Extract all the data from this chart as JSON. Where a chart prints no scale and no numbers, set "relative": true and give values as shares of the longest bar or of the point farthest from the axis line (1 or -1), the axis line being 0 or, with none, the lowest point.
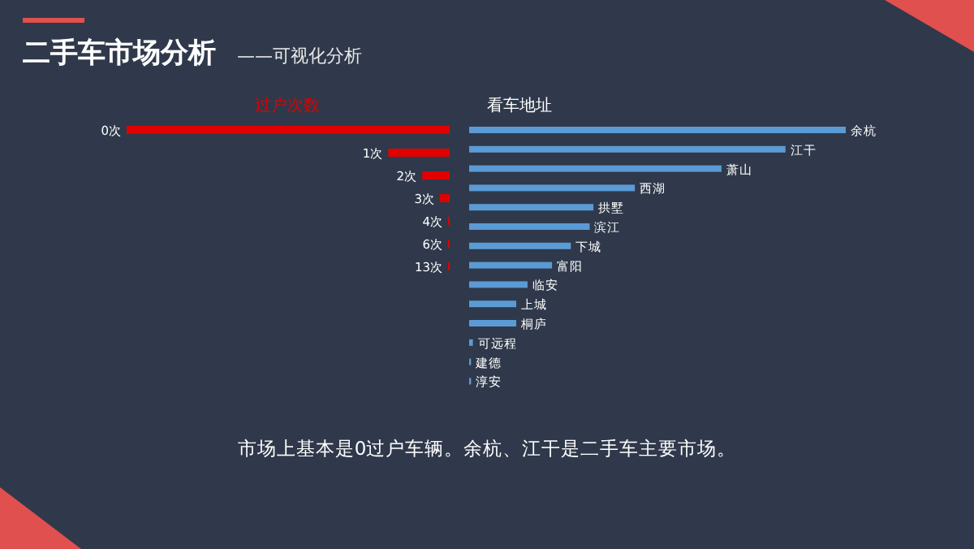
{
  "chart_data": [
    {
      "type": "other",
      "title": "二手车市场分析",
      "subtitle": "——可视化分析",
      "annotations": [
        "市场上基本是0过户车辆。余杭、江干是二手车主要市场。"
      ]
    },
    {
      "type": "bar",
      "orientation": "horizontal",
      "relative": true,
      "title": "过户次数",
      "categories": [
        "0次",
        "1次",
        "2次",
        "3次",
        "4次",
        "6次",
        "13次"
      ],
      "values": [
        1,
        0.19,
        0.085,
        0.03,
        0.005,
        0.005,
        0.005
      ],
      "color": "#e00000"
    },
    {
      "type": "bar",
      "orientation": "horizontal",
      "relative": true,
      "title": "看车地址",
      "categories": [
        "余杭",
        "江干",
        "萧山",
        "西湖",
        "拱墅",
        "滨江",
        "下城",
        "富阳",
        "临安",
        "上城",
        "桐庐",
        "可远程",
        "建德",
        "淳安"
      ],
      "values": [
        1,
        0.84,
        0.67,
        0.44,
        0.33,
        0.32,
        0.27,
        0.22,
        0.155,
        0.125,
        0.125,
        0.01,
        0.005,
        0.005
      ],
      "color": "#5b9bd5"
    }
  ]
}
